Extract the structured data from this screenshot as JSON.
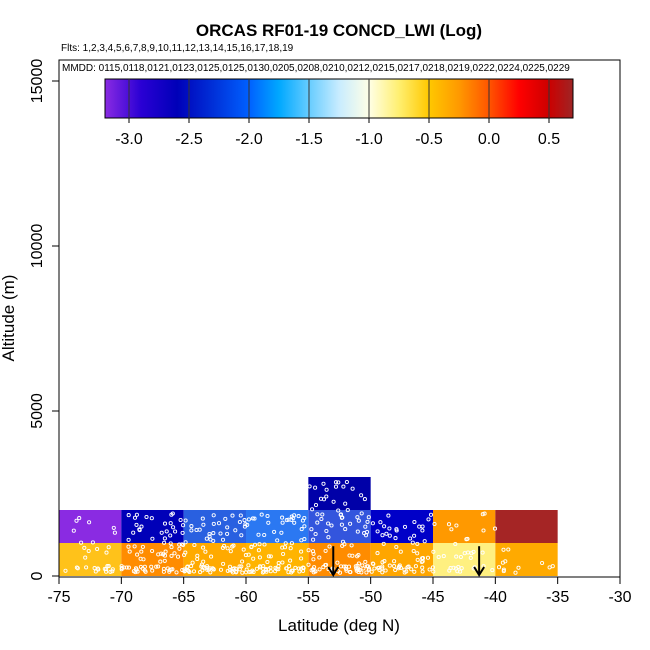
{
  "chart_data": {
    "type": "heatmap",
    "title": "ORCAS RF01-19 CONCD_LWI (Log)",
    "flights_label": "Flts: 1,2,3,4,5,6,7,8,9,10,11,12,13,14,15,16,17,18,19",
    "dates_label": "MMDD: 0115,0118,0121,0123,0125,0125,0130,0205,0208,0210,0212,0215,0217,0218,0219,0222,0224,0225,0229",
    "xlabel": "Latitude (deg N)",
    "ylabel": "Altitude (m)",
    "xlim": [
      -75,
      -30
    ],
    "ylim": [
      0,
      16000
    ],
    "xticks": [
      -75,
      -70,
      -65,
      -60,
      -55,
      -50,
      -45,
      -40,
      -35,
      -30
    ],
    "yticks": [
      0,
      5000,
      10000,
      15000
    ],
    "colorbar": {
      "range": [
        -3.2,
        0.7
      ],
      "ticks": [
        -3.0,
        -2.5,
        -2.0,
        -1.5,
        -1.0,
        -0.5,
        0.0,
        0.5
      ],
      "tick_labels": [
        "-3.0",
        "-2.5",
        "-2.0",
        "-1.5",
        "-1.0",
        "-0.5",
        "0.0",
        "0.5"
      ],
      "divisions": [
        -3.0,
        -2.5,
        -2.0,
        -1.5,
        -1.0,
        -0.5,
        0.0,
        0.5
      ],
      "stops": [
        {
          "v": -3.2,
          "c": "#8a2be2"
        },
        {
          "v": -2.9,
          "c": "#2a00d4"
        },
        {
          "v": -2.6,
          "c": "#0000b8"
        },
        {
          "v": -2.3,
          "c": "#0030d8"
        },
        {
          "v": -2.0,
          "c": "#0060ff"
        },
        {
          "v": -1.75,
          "c": "#00a8ff"
        },
        {
          "v": -1.5,
          "c": "#66ccff"
        },
        {
          "v": -1.25,
          "c": "#c8ecff"
        },
        {
          "v": -1.0,
          "c": "#ffffe6"
        },
        {
          "v": -0.75,
          "c": "#ffef70"
        },
        {
          "v": -0.5,
          "c": "#ffc800"
        },
        {
          "v": -0.25,
          "c": "#ff9900"
        },
        {
          "v": 0.0,
          "c": "#ff5500"
        },
        {
          "v": 0.25,
          "c": "#ff0000"
        },
        {
          "v": 0.5,
          "c": "#cc0000"
        },
        {
          "v": 0.7,
          "c": "#9e2525"
        }
      ]
    },
    "cells": [
      {
        "lat_min": -75,
        "lat_max": -70,
        "alt_min": 1000,
        "alt_max": 2000,
        "color": "#8a2be2"
      },
      {
        "lat_min": -70,
        "lat_max": -65,
        "alt_min": 1000,
        "alt_max": 2000,
        "color": "#0000b8"
      },
      {
        "lat_min": -65,
        "lat_max": -60,
        "alt_min": 1000,
        "alt_max": 2000,
        "color": "#2960e0"
      },
      {
        "lat_min": -60,
        "lat_max": -55,
        "alt_min": 1000,
        "alt_max": 2000,
        "color": "#2b78f2"
      },
      {
        "lat_min": -55,
        "lat_max": -50,
        "alt_min": 1000,
        "alt_max": 2000,
        "color": "#3355dd"
      },
      {
        "lat_min": -55,
        "lat_max": -50,
        "alt_min": 2000,
        "alt_max": 3000,
        "color": "#0000a8"
      },
      {
        "lat_min": -50,
        "lat_max": -45,
        "alt_min": 1000,
        "alt_max": 2000,
        "color": "#0000c8"
      },
      {
        "lat_min": -45,
        "lat_max": -40,
        "alt_min": 1000,
        "alt_max": 2000,
        "color": "#ff9900"
      },
      {
        "lat_min": -40,
        "lat_max": -35,
        "alt_min": 1000,
        "alt_max": 2000,
        "color": "#a52525"
      },
      {
        "lat_min": -75,
        "lat_max": -70,
        "alt_min": 0,
        "alt_max": 1000,
        "color": "#ffc21a"
      },
      {
        "lat_min": -70,
        "lat_max": -65,
        "alt_min": 0,
        "alt_max": 1000,
        "color": "#ff8c00"
      },
      {
        "lat_min": -65,
        "lat_max": -60,
        "alt_min": 0,
        "alt_max": 1000,
        "color": "#ffaa00"
      },
      {
        "lat_min": -60,
        "lat_max": -55,
        "alt_min": 0,
        "alt_max": 1000,
        "color": "#ffb400"
      },
      {
        "lat_min": -55,
        "lat_max": -50,
        "alt_min": 0,
        "alt_max": 1000,
        "color": "#ff8c00"
      },
      {
        "lat_min": -50,
        "lat_max": -45,
        "alt_min": 0,
        "alt_max": 1000,
        "color": "#ffa600"
      },
      {
        "lat_min": -45,
        "lat_max": -40,
        "alt_min": 0,
        "alt_max": 1000,
        "color": "#fff080"
      },
      {
        "lat_min": -40,
        "lat_max": -35,
        "alt_min": 0,
        "alt_max": 1000,
        "color": "#ffaa00"
      }
    ],
    "arrows": [
      {
        "lat": -53,
        "alt_top": 600,
        "alt_bottom": 0
      },
      {
        "lat": -41.3,
        "alt_top": 600,
        "alt_bottom": 0
      }
    ],
    "point_clusters": [
      {
        "lat_min": -74.5,
        "lat_max": -70.5,
        "alt_min": 100,
        "alt_max": 1900,
        "count": 30
      },
      {
        "lat_min": -70,
        "lat_max": -65,
        "alt_min": 100,
        "alt_max": 1900,
        "count": 80
      },
      {
        "lat_min": -65,
        "lat_max": -60,
        "alt_min": 100,
        "alt_max": 1900,
        "count": 90
      },
      {
        "lat_min": -60,
        "lat_max": -55,
        "alt_min": 100,
        "alt_max": 1900,
        "count": 90
      },
      {
        "lat_min": -55,
        "lat_max": -50,
        "alt_min": 100,
        "alt_max": 2950,
        "count": 110
      },
      {
        "lat_min": -50,
        "lat_max": -45,
        "alt_min": 100,
        "alt_max": 1900,
        "count": 70
      },
      {
        "lat_min": -45,
        "lat_max": -40,
        "alt_min": 100,
        "alt_max": 1900,
        "count": 35
      },
      {
        "lat_min": -40,
        "lat_max": -35,
        "alt_min": 100,
        "alt_max": 900,
        "count": 12
      }
    ]
  }
}
